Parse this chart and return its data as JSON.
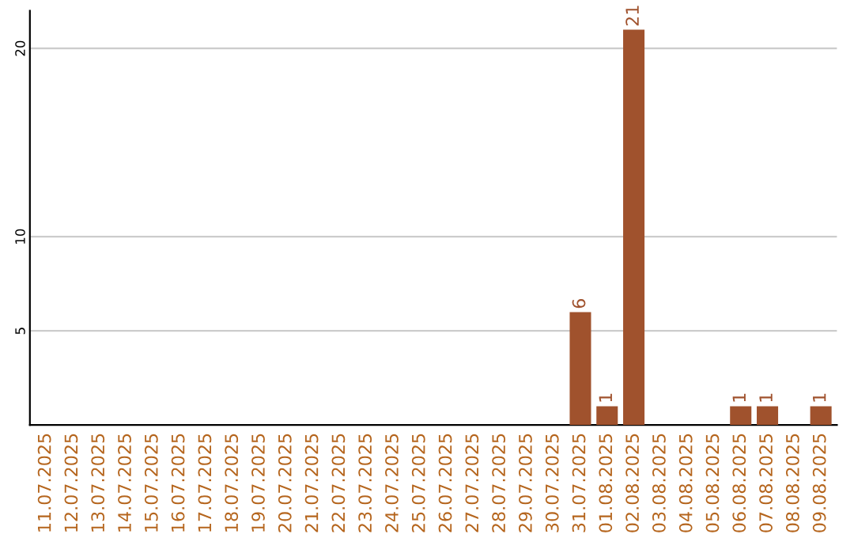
{
  "chart_data": {
    "type": "bar",
    "categories": [
      "11.07.2025",
      "12.07.2025",
      "13.07.2025",
      "14.07.2025",
      "15.07.2025",
      "16.07.2025",
      "17.07.2025",
      "18.07.2025",
      "19.07.2025",
      "20.07.2025",
      "21.07.2025",
      "22.07.2025",
      "23.07.2025",
      "24.07.2025",
      "25.07.2025",
      "26.07.2025",
      "27.07.2025",
      "28.07.2025",
      "29.07.2025",
      "30.07.2025",
      "31.07.2025",
      "01.08.2025",
      "02.08.2025",
      "03.08.2025",
      "04.08.2025",
      "05.08.2025",
      "06.08.2025",
      "07.08.2025",
      "08.08.2025",
      "09.08.2025"
    ],
    "values": [
      0,
      0,
      0,
      0,
      0,
      0,
      0,
      0,
      0,
      0,
      0,
      0,
      0,
      0,
      0,
      0,
      0,
      0,
      0,
      0,
      6,
      1,
      21,
      0,
      0,
      0,
      1,
      1,
      0,
      1
    ],
    "value_labels": [
      null,
      null,
      null,
      null,
      null,
      null,
      null,
      null,
      null,
      null,
      null,
      null,
      null,
      null,
      null,
      null,
      null,
      null,
      null,
      null,
      "6",
      "1",
      "21",
      null,
      null,
      null,
      "1",
      "1",
      null,
      "1"
    ],
    "color": "#a0522d",
    "ylim": [
      0,
      22
    ],
    "yticks": [
      5,
      10,
      20
    ],
    "grid": "y"
  }
}
